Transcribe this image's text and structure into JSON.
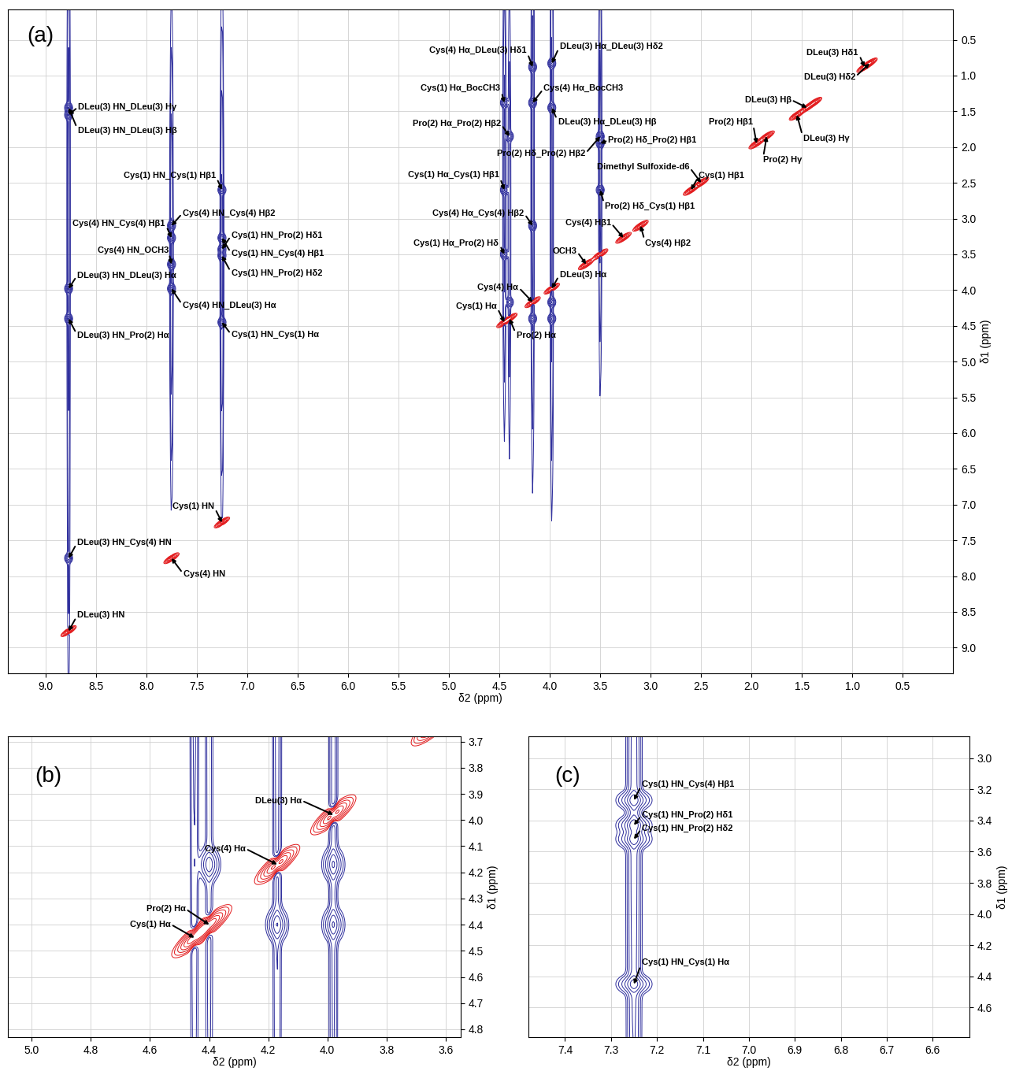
{
  "chart_data": [
    {
      "type": "nmr_2d",
      "title": "(a)",
      "xlabel": "δ2 (ppm)",
      "ylabel": "δ1 (ppm)",
      "xlim": [
        9.37,
        0.0
      ],
      "ylim": [
        9.36,
        0.08
      ],
      "xticks": [
        9.0,
        8.5,
        8.0,
        7.5,
        7.0,
        6.5,
        6.0,
        5.5,
        5.0,
        4.5,
        4.0,
        3.5,
        3.0,
        2.5,
        2.0,
        1.5,
        1.0,
        0.5
      ],
      "yticks": [
        0.5,
        1.0,
        1.5,
        2.0,
        2.5,
        3.0,
        3.5,
        4.0,
        4.5,
        5.0,
        5.5,
        6.0,
        6.5,
        7.0,
        7.5,
        8.0,
        8.5,
        9.0
      ],
      "grid": true,
      "peaks": {
        "positive": {
          "color": "#e31a1c",
          "x": [
            8.77,
            7.75,
            7.25,
            4.45,
            4.4,
            4.17,
            3.98,
            3.64,
            3.5,
            3.27,
            3.1,
            2.6,
            2.5,
            1.95,
            1.85,
            1.55,
            1.45,
            1.38,
            0.88,
            0.83
          ],
          "y": [
            8.77,
            7.75,
            7.25,
            4.45,
            4.4,
            4.17,
            3.98,
            3.64,
            3.5,
            3.27,
            3.1,
            2.6,
            2.5,
            1.95,
            1.85,
            1.55,
            1.45,
            1.38,
            0.88,
            0.83
          ]
        },
        "negative": {
          "color": "#2b2b9b",
          "x": [
            8.77,
            8.77,
            7.25,
            7.75,
            7.75,
            7.25,
            7.25,
            7.25,
            7.75,
            8.77,
            7.75,
            8.77,
            7.25,
            8.77,
            4.17,
            3.98,
            4.45,
            4.17,
            4.4,
            3.98,
            3.5,
            3.5,
            4.45,
            3.5,
            4.17,
            4.45,
            4.17,
            3.98,
            3.98,
            4.4
          ],
          "y": [
            1.55,
            1.45,
            2.6,
            3.27,
            3.1,
            3.43,
            3.27,
            3.52,
            3.64,
            3.98,
            3.98,
            4.4,
            4.45,
            7.75,
            0.88,
            0.83,
            1.38,
            1.38,
            1.85,
            1.45,
            1.85,
            1.95,
            2.6,
            2.6,
            3.1,
            3.5,
            4.4,
            4.4,
            4.17,
            4.17
          ]
        }
      },
      "annotations": [
        {
          "text": "DLeu(3) HN_DLeu(3) Hγ",
          "x": 8.77,
          "y": 1.55
        },
        {
          "text": "DLeu(3) HN_DLeu(3) Hβ",
          "x": 8.77,
          "y": 1.45
        },
        {
          "text": "Cys(1) HN_Cys(1) Hβ1",
          "x": 7.25,
          "y": 2.6
        },
        {
          "text": "Cys(4) HN_Cys(4) Hβ1",
          "x": 7.75,
          "y": 3.27
        },
        {
          "text": "Cys(4) HN_Cys(4) Hβ2",
          "x": 7.75,
          "y": 3.1
        },
        {
          "text": "Cys(1) HN_Pro(2) Hδ1",
          "x": 7.25,
          "y": 3.43
        },
        {
          "text": "Cys(1) HN_Cys(4) Hβ1",
          "x": 7.25,
          "y": 3.27
        },
        {
          "text": "Cys(1) HN_Pro(2) Hδ2",
          "x": 7.25,
          "y": 3.52
        },
        {
          "text": "Cys(4) HN_OCH3",
          "x": 7.75,
          "y": 3.64
        },
        {
          "text": "DLeu(3) HN_DLeu(3) Hα",
          "x": 8.77,
          "y": 3.98
        },
        {
          "text": "Cys(4) HN_DLeu(3) Hα",
          "x": 7.75,
          "y": 3.98
        },
        {
          "text": "DLeu(3) HN_Pro(2) Hα",
          "x": 8.77,
          "y": 4.4
        },
        {
          "text": "Cys(1) HN_Cys(1) Hα",
          "x": 7.25,
          "y": 4.45
        },
        {
          "text": "Cys(1) HN",
          "x": 7.25,
          "y": 7.25
        },
        {
          "text": "DLeu(3) HN_Cys(4) HN",
          "x": 8.77,
          "y": 7.75
        },
        {
          "text": "Cys(4) HN",
          "x": 7.75,
          "y": 7.75
        },
        {
          "text": "DLeu(3) HN",
          "x": 8.77,
          "y": 8.77
        },
        {
          "text": "Cys(4) Hα_DLeu(3) Hδ1",
          "x": 4.17,
          "y": 0.88
        },
        {
          "text": "DLeu(3) Hα_DLeu(3) Hδ2",
          "x": 3.98,
          "y": 0.83
        },
        {
          "text": "Cys(1) Hα_BocCH3",
          "x": 4.45,
          "y": 1.38
        },
        {
          "text": "Cys(4) Hα_BocCH3",
          "x": 4.17,
          "y": 1.38
        },
        {
          "text": "Pro(2) Hα_Pro(2) Hβ2",
          "x": 4.4,
          "y": 1.85
        },
        {
          "text": "DLeu(3) Hα_DLeu(3) Hβ",
          "x": 3.98,
          "y": 1.45
        },
        {
          "text": "Pro(2) Hδ_Pro(2) Hβ2",
          "x": 3.5,
          "y": 1.85
        },
        {
          "text": "Pro(2) Hδ_Pro(2) Hβ1",
          "x": 3.5,
          "y": 1.95
        },
        {
          "text": "Dimethyl Sulfoxide-d6",
          "x": 2.5,
          "y": 2.5
        },
        {
          "text": "Cys(1) Hβ1",
          "x": 2.6,
          "y": 2.6
        },
        {
          "text": "Pro(2) Hδ_Cys(1) Hβ1",
          "x": 3.5,
          "y": 2.6
        },
        {
          "text": "Cys(1) Hα_Cys(1) Hβ1",
          "x": 4.45,
          "y": 2.6
        },
        {
          "text": "Cys(4) Hα_Cys(4) Hβ2",
          "x": 4.17,
          "y": 3.1
        },
        {
          "text": "Cys(1) Hα_Pro(2) Hδ",
          "x": 4.45,
          "y": 3.5
        },
        {
          "text": "Cys(4) Hβ1",
          "x": 3.27,
          "y": 3.27
        },
        {
          "text": "Cys(4) Hβ2",
          "x": 3.1,
          "y": 3.1
        },
        {
          "text": "OCH3",
          "x": 3.64,
          "y": 3.64
        },
        {
          "text": "DLeu(3) Hα",
          "x": 3.98,
          "y": 3.98
        },
        {
          "text": "Cys(4) Hα",
          "x": 4.17,
          "y": 4.17
        },
        {
          "text": "Cys(1) Hα",
          "x": 4.45,
          "y": 4.45
        },
        {
          "text": "Pro(2) Hα",
          "x": 4.4,
          "y": 4.4
        },
        {
          "text": "Pro(2) Hβ1",
          "x": 1.95,
          "y": 1.95
        },
        {
          "text": "Pro(2) Hγ",
          "x": 1.85,
          "y": 1.85
        },
        {
          "text": "DLeu(3) Hβ",
          "x": 1.45,
          "y": 1.45
        },
        {
          "text": "DLeu(3) Hγ",
          "x": 1.55,
          "y": 1.55
        },
        {
          "text": "DLeu(3) Hδ1",
          "x": 0.88,
          "y": 0.88
        },
        {
          "text": "DLeu(3) Hδ2",
          "x": 0.83,
          "y": 0.83
        }
      ]
    },
    {
      "type": "nmr_2d",
      "title": "(b)",
      "xlabel": "δ2 (ppm)",
      "ylabel": "δ1 (ppm)",
      "xlim": [
        5.08,
        3.55
      ],
      "ylim": [
        4.83,
        3.68
      ],
      "xticks": [
        5.0,
        4.8,
        4.6,
        4.4,
        4.2,
        4.0,
        3.8,
        3.6
      ],
      "yticks": [
        3.7,
        3.8,
        3.9,
        4.0,
        4.1,
        4.2,
        4.3,
        4.4,
        4.5,
        4.6,
        4.7,
        4.8
      ],
      "grid": true,
      "annotations": [
        {
          "text": "DLeu(3) Hα",
          "x": 3.98,
          "y": 3.98
        },
        {
          "text": "Cys(4) Hα",
          "x": 4.17,
          "y": 4.17
        },
        {
          "text": "Pro(2) Hα",
          "x": 4.4,
          "y": 4.4
        },
        {
          "text": "Cys(1) Hα",
          "x": 4.45,
          "y": 4.45
        }
      ]
    },
    {
      "type": "nmr_2d",
      "title": "(c)",
      "xlabel": "δ2 (ppm)",
      "ylabel": "δ1 (ppm)",
      "xlim": [
        7.48,
        6.52
      ],
      "ylim": [
        4.79,
        2.86
      ],
      "xticks": [
        7.4,
        7.3,
        7.2,
        7.1,
        7.0,
        6.9,
        6.8,
        6.7,
        6.6
      ],
      "yticks": [
        3.0,
        3.2,
        3.4,
        3.6,
        3.8,
        4.0,
        4.2,
        4.4,
        4.6
      ],
      "grid": true,
      "annotations": [
        {
          "text": "Cys(1) HN_Cys(4) Hβ1",
          "x": 7.25,
          "y": 3.27
        },
        {
          "text": "Cys(1) HN_Pro(2) Hδ1",
          "x": 7.25,
          "y": 3.43
        },
        {
          "text": "Cys(1) HN_Pro(2) Hδ2",
          "x": 7.25,
          "y": 3.52
        },
        {
          "text": "Cys(1) HN_Cys(1) Hα",
          "x": 7.25,
          "y": 4.45
        }
      ]
    }
  ]
}
